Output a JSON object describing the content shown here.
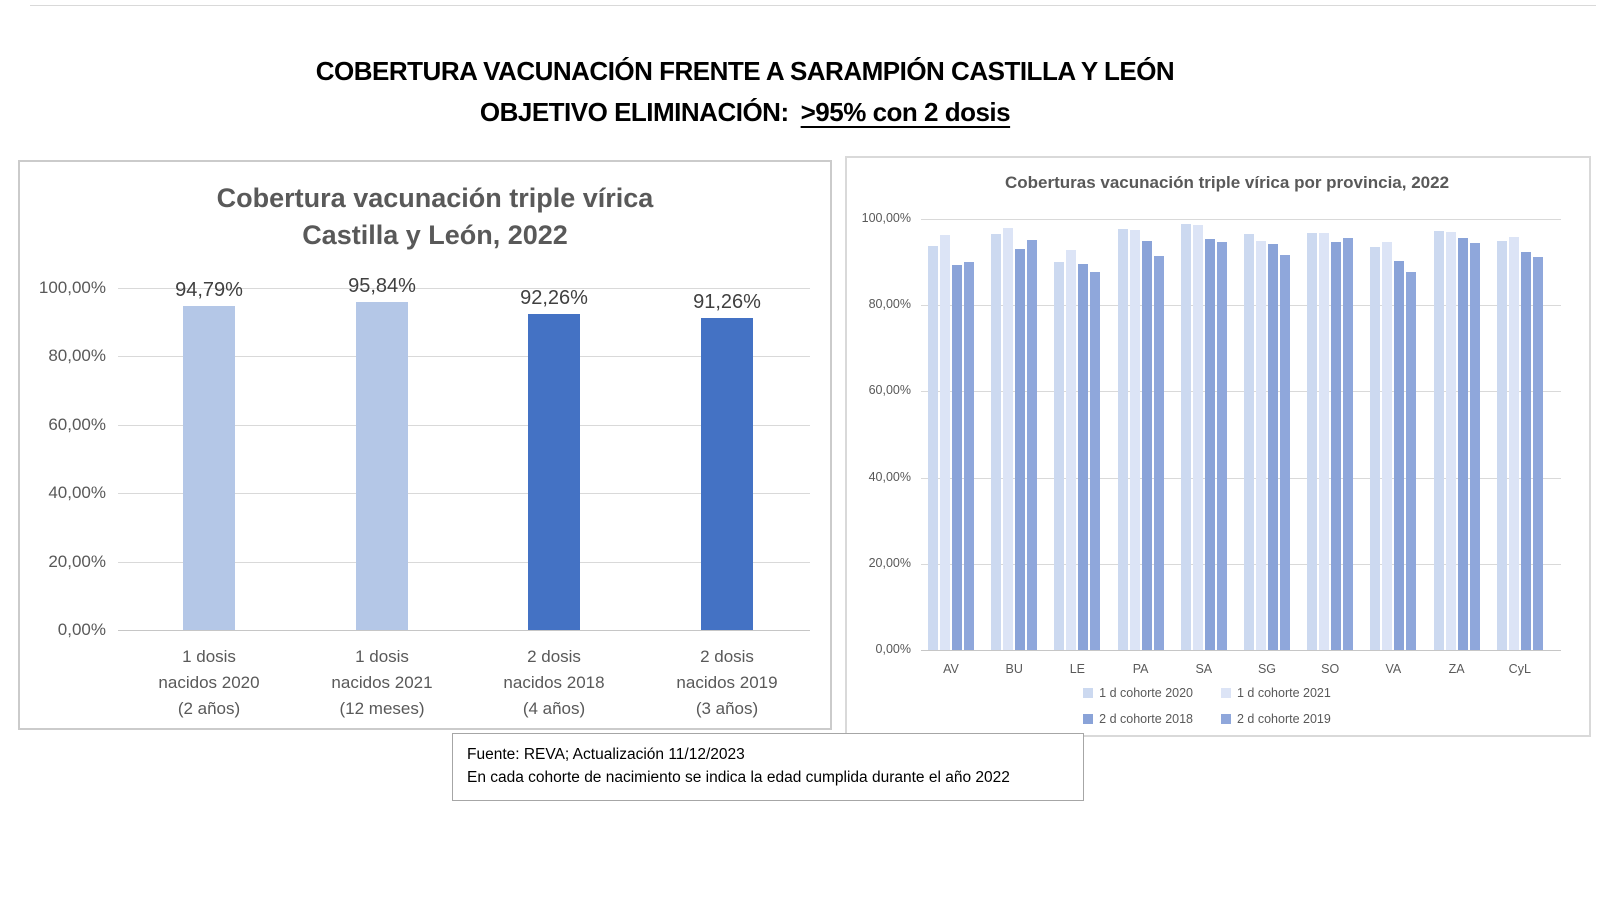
{
  "page": {
    "title_line1": "COBERTURA VACUNACIÓN FRENTE A SARAMPIÓN CASTILLA Y LEÓN",
    "title_line2_prefix": "OBJETIVO ELIMINACIÓN:",
    "title_line2_underlined": ">95% con 2 dosis"
  },
  "footnote": {
    "line1": "Fuente: REVA; Actualización 11/12/2023",
    "line2": "En cada cohorte de nacimiento se indica  la edad cumplida durante el año 2022"
  },
  "colors": {
    "light_bar": "#b4c7e7",
    "dark_bar": "#4472c4",
    "series_1d_2020": "#ccd9f0",
    "series_1d_2021": "#dce4f6",
    "series_2d_2018": "#8aa3d8",
    "series_2d_2019": "#8fa7db",
    "gridline": "#d9d9d9",
    "axis_text": "#595959"
  },
  "chart_data": [
    {
      "type": "bar",
      "title_line1": "Cobertura vacunación triple vírica",
      "title_line2": "Castilla y León, 2022",
      "categories": [
        [
          "1 dosis",
          "nacidos 2020",
          "(2 años)"
        ],
        [
          "1 dosis",
          "nacidos 2021",
          "(12 meses)"
        ],
        [
          "2 dosis",
          "nacidos 2018",
          "(4 años)"
        ],
        [
          "2 dosis",
          "nacidos 2019",
          "(3 años)"
        ]
      ],
      "values": [
        94.79,
        95.84,
        92.26,
        91.26
      ],
      "value_labels": [
        "94,79%",
        "95,84%",
        "92,26%",
        "91,26%"
      ],
      "bar_colors": [
        "#b4c7e7",
        "#b4c7e7",
        "#4472c4",
        "#4472c4"
      ],
      "y_ticks": [
        "100,00%",
        "80,00%",
        "60,00%",
        "40,00%",
        "20,00%",
        "0,00%"
      ],
      "ylim": [
        0,
        100
      ],
      "grid": true,
      "legend_position": "none"
    },
    {
      "type": "bar",
      "title": "Coberturas vacunación  triple vírica por provincia, 2022",
      "categories": [
        "AV",
        "BU",
        "LE",
        "PA",
        "SA",
        "SG",
        "SO",
        "VA",
        "ZA",
        "CyL"
      ],
      "series": [
        {
          "name": "1 d cohorte 2020",
          "color": "#ccd9f0",
          "values": [
            93.8,
            96.6,
            90.1,
            97.7,
            98.9,
            96.6,
            96.8,
            93.5,
            97.3,
            94.79
          ]
        },
        {
          "name": "1 d cohorte 2021",
          "color": "#dce4f6",
          "values": [
            96.3,
            98.0,
            92.9,
            97.4,
            98.7,
            94.8,
            96.7,
            94.6,
            97.0,
            95.84
          ]
        },
        {
          "name": "2 d cohorte 2018",
          "color": "#8aa3d8",
          "values": [
            89.4,
            93.0,
            89.5,
            94.9,
            95.3,
            94.1,
            94.6,
            90.3,
            95.6,
            92.26
          ]
        },
        {
          "name": "2 d cohorte 2019",
          "color": "#8fa7db",
          "values": [
            90.1,
            95.2,
            87.6,
            91.4,
            94.6,
            91.6,
            95.6,
            87.7,
            94.4,
            91.26
          ]
        }
      ],
      "y_ticks": [
        "100,00%",
        "80,00%",
        "60,00%",
        "40,00%",
        "20,00%",
        "0,00%"
      ],
      "ylim": [
        0,
        100
      ],
      "grid": true,
      "legend_position": "bottom",
      "legend_rows": [
        [
          "1 d cohorte 2020",
          "1 d cohorte 2021"
        ],
        [
          "2 d cohorte 2018",
          "2 d cohorte 2019"
        ]
      ]
    }
  ]
}
